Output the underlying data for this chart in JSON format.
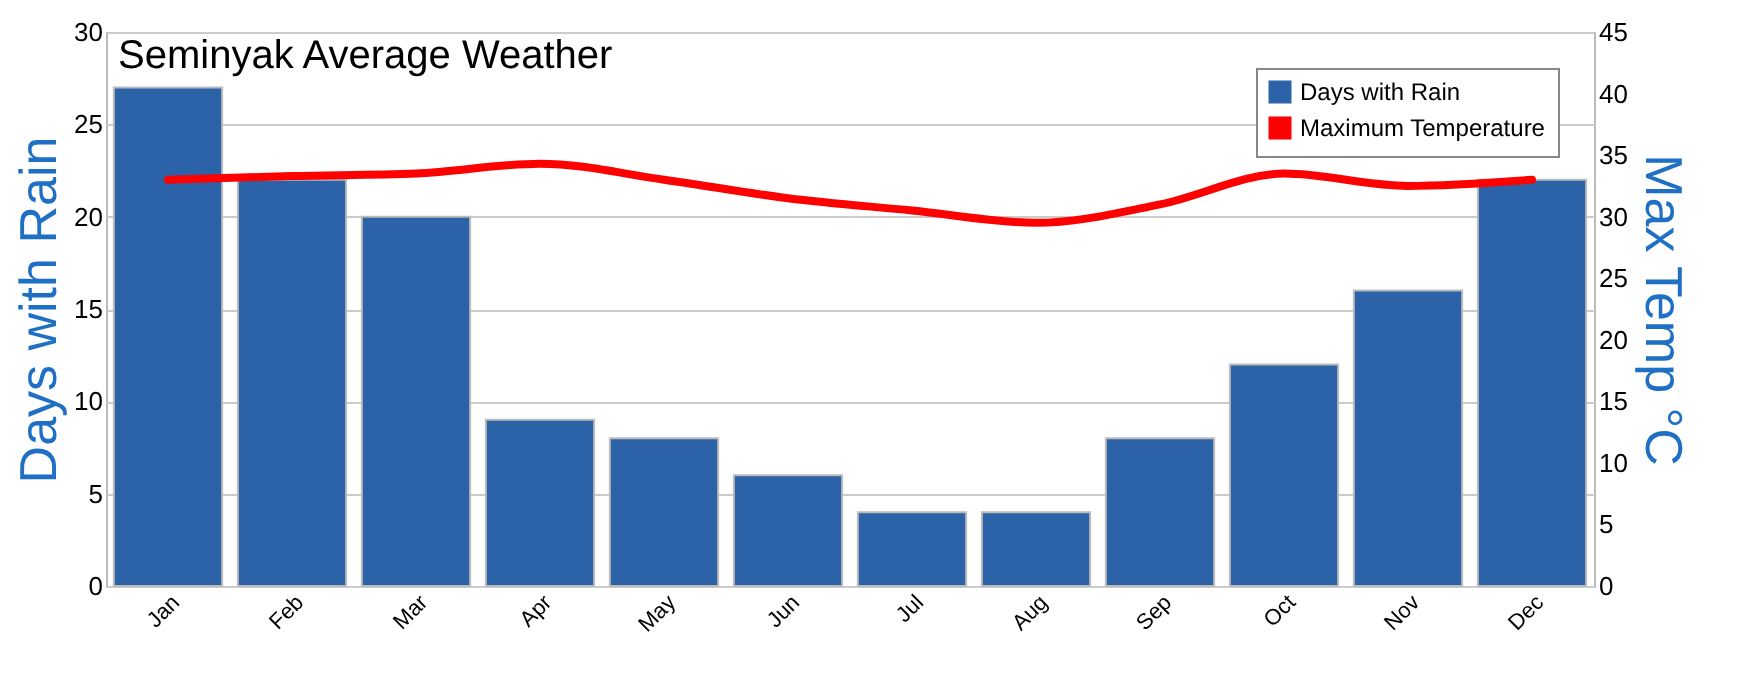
{
  "chart_data": {
    "type": "bar",
    "title": "Seminyak Average Weather",
    "ylabel": "Days with Rain",
    "y2label": "Max Temp °C",
    "categories": [
      "Jan",
      "Feb",
      "Mar",
      "Apr",
      "May",
      "Jun",
      "Jul",
      "Aug",
      "Sep",
      "Oct",
      "Nov",
      "Dec"
    ],
    "series": [
      {
        "name": "Days with Rain",
        "color": "#2b62a8",
        "values": [
          27,
          22,
          20,
          9,
          8,
          6,
          4,
          4,
          8,
          12,
          16,
          22
        ]
      },
      {
        "name": "Maximum Temperature",
        "type": "line",
        "axis": "y2",
        "color": "#ff0000",
        "values": [
          33,
          33.3,
          33.5,
          34.3,
          33,
          31.5,
          30.5,
          29.5,
          31,
          33.5,
          32.5,
          33
        ]
      }
    ],
    "ylim": [
      0,
      30
    ],
    "yticks": [
      0,
      5,
      10,
      15,
      20,
      25,
      30
    ],
    "y2lim": [
      0,
      45
    ],
    "y2ticks": [
      0,
      5,
      10,
      15,
      20,
      25,
      30,
      35,
      40,
      45
    ],
    "grid": "y",
    "legend": "top right",
    "marker": "none",
    "line_style": "solid"
  }
}
